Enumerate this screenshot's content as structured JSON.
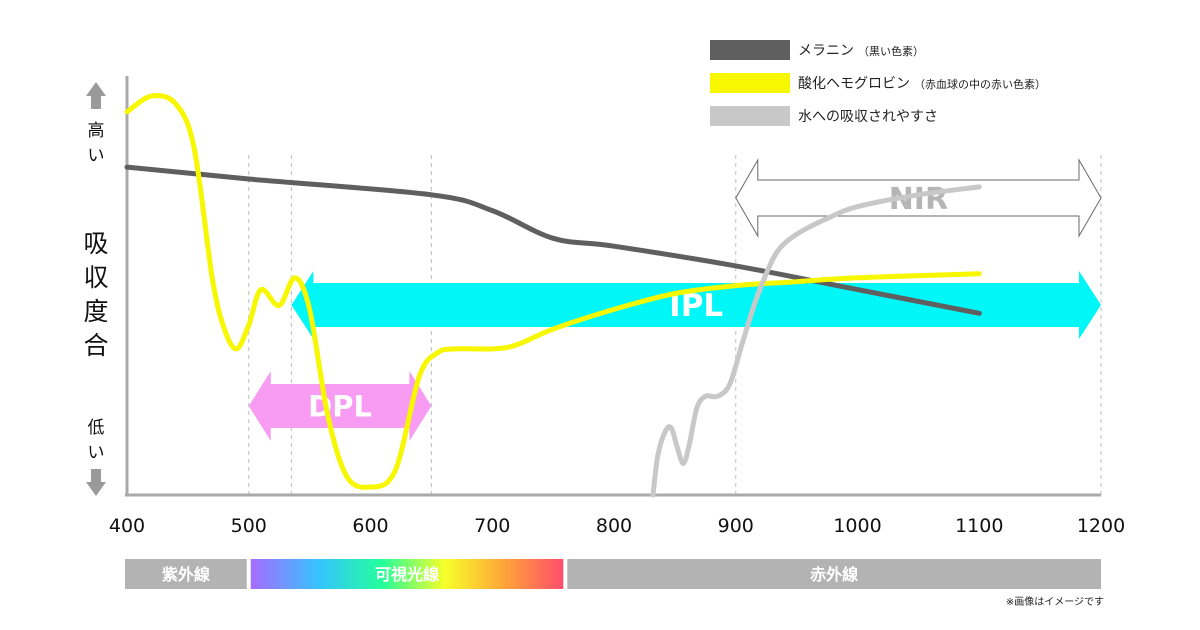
{
  "chart_data": {
    "type": "line",
    "xlim": [
      400,
      1200
    ],
    "x_ticks": [
      "400",
      "500",
      "600",
      "700",
      "800",
      "900",
      "1000",
      "1100",
      "1200"
    ],
    "ylabel": "吸収度合",
    "y_high_label": "高い",
    "y_low_label": "低い",
    "ylim": [
      0,
      100
    ],
    "gridlines_x": [
      500,
      535,
      650,
      900,
      1200
    ],
    "series": [
      {
        "name": "メラニン",
        "name_note": "（黒い色素）",
        "color": "#5f5f5f",
        "points": [
          [
            400,
            83
          ],
          [
            500,
            80
          ],
          [
            650,
            76
          ],
          [
            700,
            72
          ],
          [
            750,
            65
          ],
          [
            800,
            63
          ],
          [
            900,
            58
          ],
          [
            1000,
            52
          ],
          [
            1100,
            46
          ]
        ]
      },
      {
        "name": "酸化ヘモグロビン",
        "name_note": "（赤血球の中の赤い色素）",
        "color": "#f7f700",
        "points": [
          [
            400,
            97
          ],
          [
            420,
            101
          ],
          [
            440,
            99
          ],
          [
            455,
            88
          ],
          [
            470,
            55
          ],
          [
            480,
            42
          ],
          [
            490,
            37
          ],
          [
            500,
            43
          ],
          [
            510,
            52
          ],
          [
            525,
            48
          ],
          [
            538,
            55
          ],
          [
            550,
            47
          ],
          [
            565,
            20
          ],
          [
            580,
            5
          ],
          [
            598,
            2
          ],
          [
            620,
            6
          ],
          [
            640,
            30
          ],
          [
            655,
            36
          ],
          [
            670,
            37
          ],
          [
            700,
            37
          ],
          [
            720,
            38
          ],
          [
            750,
            42
          ],
          [
            800,
            47
          ],
          [
            850,
            51
          ],
          [
            900,
            53
          ],
          [
            950,
            54
          ],
          [
            1000,
            55
          ],
          [
            1100,
            56
          ]
        ]
      },
      {
        "name": "水への吸収されやすさ",
        "name_note": "",
        "color": "#c8c8c8",
        "points": [
          [
            832,
            0
          ],
          [
            836,
            10
          ],
          [
            842,
            16
          ],
          [
            847,
            17
          ],
          [
            852,
            12
          ],
          [
            857,
            8
          ],
          [
            862,
            13
          ],
          [
            868,
            22
          ],
          [
            875,
            25
          ],
          [
            885,
            25
          ],
          [
            895,
            28
          ],
          [
            905,
            38
          ],
          [
            915,
            48
          ],
          [
            925,
            56
          ],
          [
            935,
            62
          ],
          [
            950,
            66
          ],
          [
            975,
            70
          ],
          [
            1000,
            73
          ],
          [
            1050,
            76
          ],
          [
            1100,
            78
          ]
        ]
      }
    ],
    "ranges": [
      {
        "label": "NIR",
        "from": 900,
        "to": 1200,
        "color": "#ffffff",
        "text_color": "#b5b5b5"
      },
      {
        "label": "IPL",
        "from": 535,
        "to": 1200,
        "color": "#00f7f7",
        "text_color": "#ffffff"
      },
      {
        "label": "DPL",
        "from": 500,
        "to": 650,
        "color": "#f79cf2",
        "text_color": "#ffffff"
      }
    ],
    "spectrum_bands": [
      {
        "label": "紫外線",
        "from": 400,
        "to": 500
      },
      {
        "label": "可視光線",
        "from": 500,
        "to": 760
      },
      {
        "label": "赤外線",
        "from": 760,
        "to": 1200
      }
    ],
    "legend_position": "top-right"
  },
  "note": "※画像はイメージです"
}
